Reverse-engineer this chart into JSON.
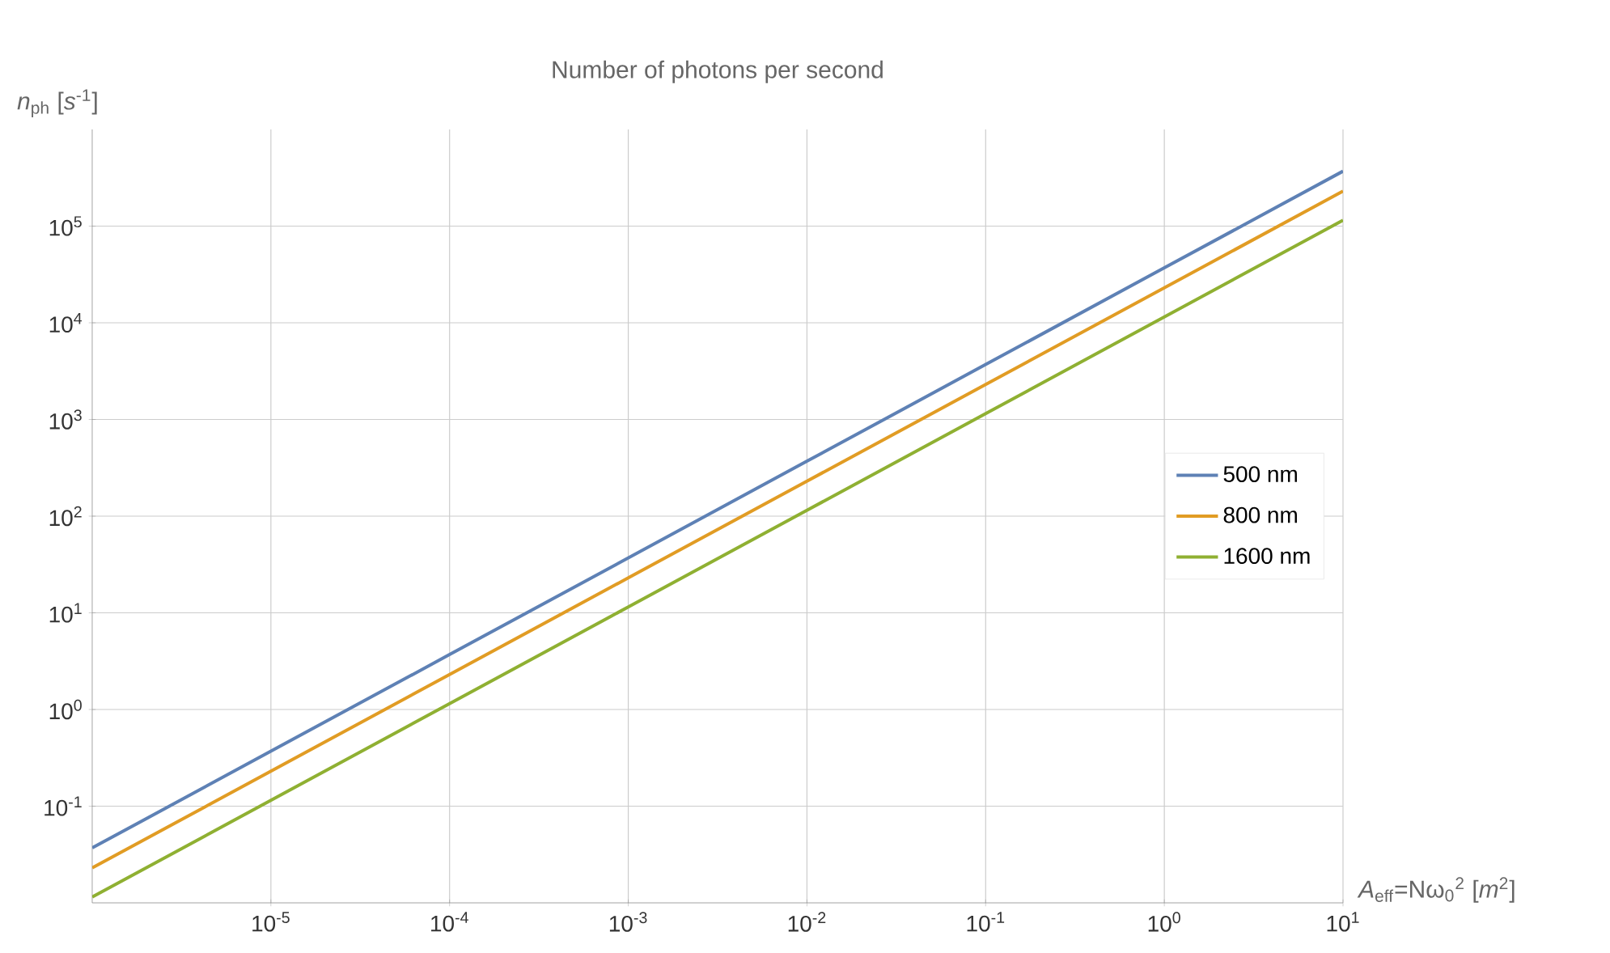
{
  "chart_data": {
    "type": "line",
    "title": "Number of photons per second",
    "xlabel": "*A*$_{eff}$=Nω$_{0}$$^{2}$ [*m*$^{2}$]",
    "ylabel": "*n*$_{ph}$ [*s*$^{-1}$]",
    "x": [
      1e-06,
      1e-05,
      0.0001,
      0.001,
      0.01,
      0.1,
      1,
      10
    ],
    "series": [
      {
        "name": "500 nm",
        "color": "#5e81b5",
        "values": [
          0.037,
          0.37,
          3.7,
          37,
          370,
          3700,
          37000,
          370000
        ]
      },
      {
        "name": "800 nm",
        "color": "#e19c24",
        "values": [
          0.023,
          0.23,
          2.3,
          23,
          230,
          2300,
          23000,
          230000
        ]
      },
      {
        "name": "1600 nm",
        "color": "#8fb032",
        "values": [
          0.0115,
          0.115,
          1.15,
          11.5,
          115,
          1150,
          11500,
          115000
        ]
      }
    ],
    "log": "xy",
    "xlim": [
      1e-06,
      10
    ],
    "ylim": [
      0.01,
      1000000
    ],
    "xticks": [
      {
        "value": 1e-05,
        "label": "10$^{-5}$"
      },
      {
        "value": 0.0001,
        "label": "10$^{-4}$"
      },
      {
        "value": 0.001,
        "label": "10$^{-3}$"
      },
      {
        "value": 0.01,
        "label": "10$^{-2}$"
      },
      {
        "value": 0.1,
        "label": "10$^{-1}$"
      },
      {
        "value": 1,
        "label": "10$^{0}$"
      },
      {
        "value": 10,
        "label": "10$^{1}$"
      }
    ],
    "yticks": [
      {
        "value": 0.1,
        "label": "10$^{-1}$"
      },
      {
        "value": 1,
        "label": "10$^{0}$"
      },
      {
        "value": 10,
        "label": "10$^{1}$"
      },
      {
        "value": 100,
        "label": "10$^{2}$"
      },
      {
        "value": 1000,
        "label": "10$^{3}$"
      },
      {
        "value": 10000,
        "label": "10$^{4}$"
      },
      {
        "value": 100000,
        "label": "10$^{5}$"
      }
    ],
    "grid": true,
    "legend": "right",
    "marker": "none",
    "line_style": "solid"
  }
}
